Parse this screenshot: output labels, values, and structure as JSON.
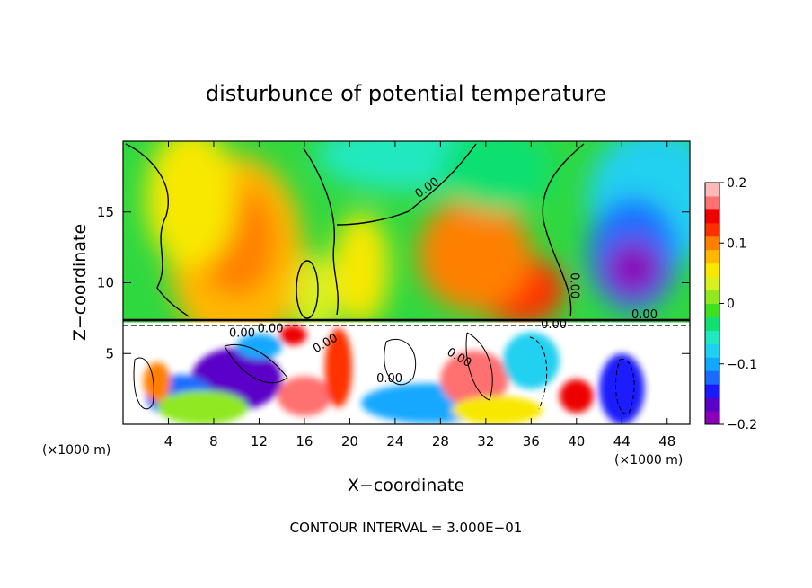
{
  "chart_data": {
    "type": "heatmap",
    "title": "disturbunce of potential temperature",
    "xlabel": "X−coordinate",
    "ylabel": "Z−coordinate",
    "x_unit_left": "(×1000 m)",
    "x_unit_right": "(×1000 m)",
    "xlim": [
      0,
      50
    ],
    "ylim": [
      0,
      20
    ],
    "x_ticks": [
      4,
      8,
      12,
      16,
      20,
      24,
      28,
      32,
      36,
      40,
      44,
      48
    ],
    "y_ticks": [
      5,
      10,
      15
    ],
    "colorbar": {
      "range": [
        -0.2,
        0.2
      ],
      "ticks": [
        0.2,
        0.1,
        0,
        -0.1,
        -0.2
      ],
      "tick_labels": [
        "0.2",
        "0.1",
        "0",
        "−0.1",
        "−0.2"
      ],
      "colors": [
        "#8a00b8",
        "#5a00c8",
        "#1a1aff",
        "#1a6cff",
        "#12a8ff",
        "#20d0f0",
        "#20e8c0",
        "#10e070",
        "#40e020",
        "#90e820",
        "#d8f020",
        "#f8e800",
        "#ffb800",
        "#ff8000",
        "#ff3000",
        "#ee0000",
        "#ff7070",
        "#ffb8b8"
      ]
    },
    "contour_labels": [
      "0.00",
      "0.00",
      "0.00",
      "0.00",
      "0.00",
      "0.00",
      "0.00",
      "0.00",
      "0.00"
    ],
    "footer": "CONTOUR INTERVAL = 3.000E−01",
    "features": [
      {
        "x": 10,
        "z": 13,
        "value": 0.11
      },
      {
        "x": 35,
        "z": 9.5,
        "value": 0.15
      },
      {
        "x": 45,
        "z": 11,
        "value": -0.19
      },
      {
        "x": 25,
        "z": 19,
        "value": -0.05
      },
      {
        "x": 49,
        "z": 17,
        "value": -0.06
      },
      {
        "x": 17,
        "z": 9,
        "value": 0.02
      },
      {
        "x": 31,
        "z": 3,
        "value": 0.17
      },
      {
        "x": 16,
        "z": 2,
        "value": 0.17
      },
      {
        "x": 10,
        "z": 3,
        "value": -0.15
      },
      {
        "x": 44,
        "z": 2.5,
        "value": -0.16
      }
    ]
  }
}
